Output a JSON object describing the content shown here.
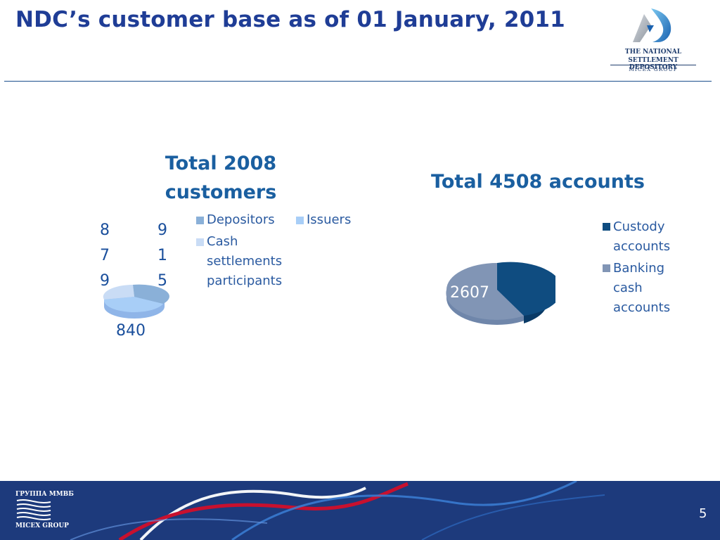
{
  "slide": {
    "title": "NDC’s customer base as of 01 January, 2011",
    "page_number": "5"
  },
  "logo": {
    "line1": "THE NATIONAL",
    "line2": "SETTLEMENT DEPOSITORY",
    "line3": "MICEX GROUP"
  },
  "footer": {
    "logo_top": "ГРУППА ММВБ",
    "logo_bottom": "MICEX GROUP"
  },
  "colors": {
    "title": "#1f3d96",
    "depositors": "#8ab0d8",
    "issuers": "#a8cef7",
    "cash_settlements": "#c9dcf5",
    "custody": "#0f4c80",
    "banking": "#8195b5",
    "footer": "#1d3a7c"
  },
  "chart_data": [
    {
      "type": "pie",
      "title": "Total 2008 customers",
      "categories": [
        "Depositors",
        "Issuers",
        "Cash settlements participants"
      ],
      "values": [
        915,
        840,
        879
      ],
      "data_labels": {
        "first": "9\n1\n5",
        "second": "840",
        "third": "8\n7\n9"
      },
      "legend": {
        "placement": "top-right",
        "items": [
          "Depositors",
          "Issuers",
          "Cash settlements participants"
        ]
      }
    },
    {
      "type": "pie",
      "title": "Total 4508 accounts",
      "categories": [
        "Custody accounts",
        "Banking cash accounts"
      ],
      "values": [
        1901,
        2607
      ],
      "data_labels": {
        "banking": "2607"
      },
      "legend": {
        "placement": "right",
        "items": [
          "Custody accounts",
          "Banking cash accounts"
        ]
      }
    }
  ]
}
